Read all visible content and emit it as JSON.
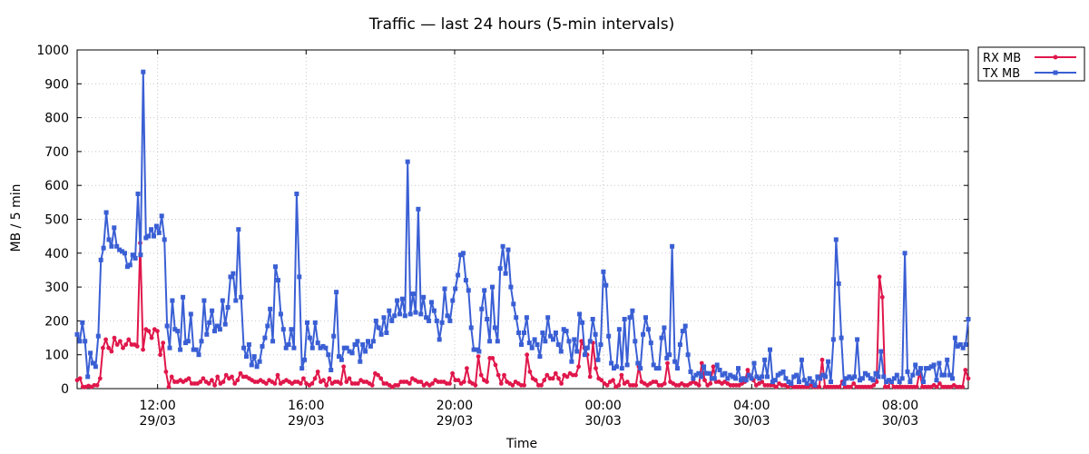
{
  "chart_data": {
    "type": "line",
    "title": "Traffic — last 24 hours (5-min intervals)",
    "xlabel": "Time",
    "ylabel": "MB / 5 min",
    "ylim": [
      0,
      1000
    ],
    "yticks": [
      "0",
      "100",
      "200",
      "300",
      "400",
      "500",
      "600",
      "700",
      "800",
      "900",
      "1000"
    ],
    "xticks": [
      {
        "time": "12:00",
        "date": "29/03"
      },
      {
        "time": "16:00",
        "date": "29/03"
      },
      {
        "time": "20:00",
        "date": "29/03"
      },
      {
        "time": "00:00",
        "date": "30/03"
      },
      {
        "time": "04:00",
        "date": "30/03"
      },
      {
        "time": "08:00",
        "date": "30/03"
      }
    ],
    "x_range": [
      "2024-03-29 09:50",
      "2024-03-30 09:50"
    ],
    "grid": true,
    "legend_position": "outside top-right",
    "colors": {
      "rx": "#e0174b",
      "tx": "#3a5fd4"
    },
    "series": [
      {
        "name": "RX MB",
        "marker": "circle",
        "values": [
          25,
          30,
          5,
          5,
          8,
          5,
          10,
          10,
          30,
          120,
          145,
          120,
          110,
          150,
          130,
          140,
          120,
          130,
          145,
          130,
          130,
          125,
          430,
          115,
          175,
          170,
          150,
          175,
          170,
          100,
          135,
          50,
          5,
          35,
          20,
          20,
          25,
          20,
          25,
          30,
          15,
          15,
          15,
          20,
          30,
          20,
          15,
          25,
          10,
          35,
          15,
          20,
          40,
          30,
          35,
          15,
          25,
          45,
          35,
          35,
          30,
          25,
          20,
          20,
          25,
          20,
          15,
          25,
          20,
          15,
          40,
          15,
          20,
          25,
          20,
          15,
          20,
          20,
          15,
          30,
          15,
          10,
          15,
          30,
          50,
          20,
          25,
          10,
          30,
          15,
          20,
          20,
          15,
          65,
          20,
          30,
          15,
          15,
          15,
          25,
          20,
          20,
          15,
          10,
          45,
          40,
          30,
          15,
          15,
          10,
          5,
          10,
          10,
          20,
          20,
          20,
          15,
          30,
          25,
          20,
          20,
          10,
          15,
          10,
          15,
          25,
          20,
          20,
          20,
          15,
          15,
          45,
          25,
          25,
          15,
          20,
          60,
          20,
          15,
          10,
          95,
          40,
          25,
          20,
          90,
          90,
          70,
          40,
          15,
          40,
          20,
          15,
          10,
          20,
          15,
          10,
          10,
          100,
          50,
          30,
          25,
          10,
          10,
          25,
          40,
          30,
          30,
          45,
          30,
          15,
          40,
          35,
          45,
          40,
          40,
          65,
          140,
          120,
          100,
          35,
          135,
          60,
          30,
          25,
          15,
          10,
          20,
          25,
          5,
          10,
          40,
          15,
          20,
          10,
          10,
          10,
          65,
          20,
          15,
          10,
          15,
          20,
          20,
          10,
          10,
          15,
          75,
          20,
          15,
          10,
          10,
          15,
          10,
          10,
          15,
          20,
          15,
          10,
          75,
          25,
          10,
          15,
          65,
          20,
          20,
          15,
          20,
          15,
          10,
          10,
          10,
          10,
          15,
          20,
          55,
          35,
          25,
          10,
          15,
          20,
          10,
          10,
          10,
          10,
          5,
          15,
          10,
          10,
          5,
          10,
          5,
          5,
          5,
          5,
          5,
          5,
          10,
          5,
          5,
          5,
          85,
          5,
          5,
          5,
          5,
          5,
          5,
          20,
          5,
          5,
          5,
          15,
          5,
          5,
          5,
          5,
          5,
          5,
          10,
          20,
          330,
          270,
          5,
          5,
          20,
          5,
          5,
          5,
          5,
          5,
          5,
          5,
          5,
          5,
          50,
          5,
          5,
          5,
          5,
          10,
          5,
          15,
          5,
          5,
          5,
          5,
          10,
          5,
          5,
          5,
          55,
          30
        ],
        "color": "#e0174b"
      },
      {
        "name": "TX MB",
        "marker": "square",
        "values": [
          160,
          140,
          195,
          140,
          35,
          105,
          75,
          65,
          155,
          380,
          415,
          520,
          440,
          420,
          475,
          420,
          410,
          405,
          400,
          360,
          365,
          395,
          385,
          575,
          395,
          935,
          445,
          450,
          470,
          450,
          480,
          460,
          510,
          440,
          185,
          120,
          260,
          175,
          170,
          115,
          270,
          135,
          140,
          220,
          115,
          115,
          100,
          140,
          260,
          160,
          195,
          230,
          170,
          185,
          175,
          260,
          190,
          240,
          330,
          340,
          260,
          470,
          270,
          120,
          95,
          130,
          70,
          95,
          65,
          80,
          125,
          150,
          185,
          235,
          140,
          360,
          320,
          220,
          175,
          120,
          130,
          175,
          120,
          575,
          330,
          60,
          85,
          195,
          150,
          120,
          195,
          135,
          120,
          125,
          120,
          100,
          55,
          155,
          285,
          95,
          85,
          120,
          120,
          110,
          105,
          130,
          140,
          80,
          130,
          110,
          140,
          125,
          140,
          200,
          180,
          160,
          210,
          165,
          230,
          200,
          215,
          260,
          220,
          265,
          215,
          670,
          220,
          280,
          225,
          530,
          220,
          270,
          210,
          200,
          255,
          230,
          200,
          145,
          195,
          295,
          215,
          200,
          260,
          295,
          335,
          395,
          400,
          320,
          290,
          180,
          115,
          115,
          110,
          235,
          290,
          205,
          140,
          300,
          180,
          140,
          355,
          420,
          340,
          410,
          300,
          250,
          210,
          165,
          130,
          165,
          210,
          135,
          120,
          145,
          130,
          95,
          165,
          140,
          210,
          155,
          145,
          165,
          130,
          110,
          175,
          170,
          140,
          80,
          145,
          110,
          220,
          195,
          100,
          120,
          140,
          205,
          160,
          85,
          130,
          345,
          305,
          155,
          75,
          60,
          65,
          175,
          60,
          205,
          70,
          210,
          230,
          140,
          75,
          60,
          160,
          210,
          175,
          135,
          70,
          60,
          60,
          150,
          180,
          90,
          100,
          420,
          80,
          60,
          130,
          170,
          185,
          100,
          50,
          30,
          40,
          45,
          35,
          65,
          45,
          45,
          30,
          30,
          70,
          55,
          40,
          45,
          30,
          40,
          35,
          30,
          60,
          25,
          30,
          25,
          40,
          30,
          75,
          35,
          30,
          35,
          85,
          35,
          115,
          20,
          25,
          40,
          45,
          50,
          30,
          20,
          15,
          35,
          40,
          20,
          85,
          25,
          15,
          30,
          20,
          10,
          35,
          30,
          40,
          35,
          80,
          20,
          145,
          440,
          310,
          150,
          15,
          30,
          35,
          30,
          35,
          145,
          25,
          30,
          45,
          40,
          30,
          25,
          45,
          35,
          110,
          35,
          20,
          25,
          20,
          30,
          40,
          20,
          30,
          400,
          50,
          20,
          40,
          70,
          45,
          60,
          20,
          60,
          60,
          65,
          70,
          25,
          75,
          40,
          40,
          85,
          40,
          30,
          150,
          125,
          130,
          120,
          130,
          205
        ],
        "color": "#3a5fd4"
      }
    ]
  }
}
